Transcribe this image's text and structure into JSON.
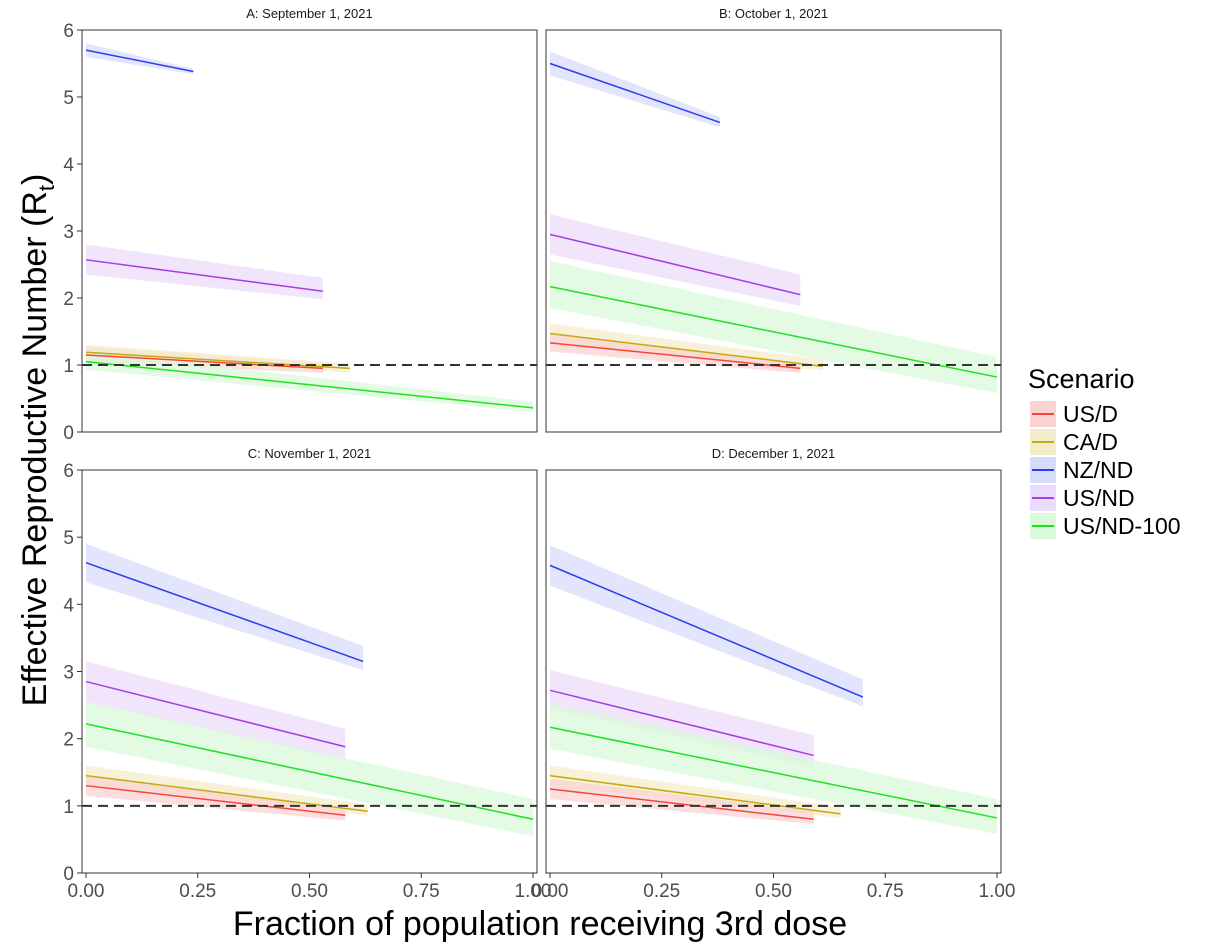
{
  "figure": {
    "ylabel_main": "Effective Reproductive Number (R",
    "ylabel_sub": "t",
    "ylabel_close": ")",
    "xlabel": "Fraction of population receiving 3rd dose"
  },
  "legend": {
    "title": "Scenario",
    "items": [
      {
        "label": "US/D",
        "color": "#f8453a",
        "fill": "#fbd3d3"
      },
      {
        "label": "CA/D",
        "color": "#c6a910",
        "fill": "#f3ecc9"
      },
      {
        "label": "NZ/ND",
        "color": "#2a3ef0",
        "fill": "#d8dcfb"
      },
      {
        "label": "US/ND",
        "color": "#a43ee5",
        "fill": "#ecdcfb"
      },
      {
        "label": "US/ND-100",
        "color": "#21e021",
        "fill": "#daf8da"
      }
    ]
  },
  "chart_data": {
    "type": "line",
    "xlim": [
      0,
      1
    ],
    "ylim": [
      0,
      6
    ],
    "x_ticks": [
      "0.00",
      "0.25",
      "0.50",
      "0.75",
      "1.00"
    ],
    "y_ticks": [
      "0",
      "1",
      "2",
      "3",
      "4",
      "5",
      "6"
    ],
    "reference_line": 1,
    "grid": false,
    "legend_position": "right",
    "panels": [
      {
        "title": "A: September 1, 2021",
        "series": [
          {
            "name": "NZ/ND",
            "x": [
              0,
              0.24
            ],
            "y": [
              5.7,
              5.38
            ],
            "lower": [
              5.6,
              5.34
            ],
            "upper": [
              5.8,
              5.42
            ]
          },
          {
            "name": "US/ND",
            "x": [
              0,
              0.53
            ],
            "y": [
              2.57,
              2.1
            ],
            "lower": [
              2.35,
              1.98
            ],
            "upper": [
              2.8,
              2.3
            ]
          },
          {
            "name": "US/D",
            "x": [
              0,
              0.53
            ],
            "y": [
              1.15,
              0.95
            ],
            "lower": [
              1.05,
              0.88
            ],
            "upper": [
              1.27,
              1.03
            ]
          },
          {
            "name": "CA/D",
            "x": [
              0,
              0.59
            ],
            "y": [
              1.19,
              0.95
            ],
            "lower": [
              1.1,
              0.89
            ],
            "upper": [
              1.3,
              1.02
            ]
          },
          {
            "name": "US/ND-100",
            "x": [
              0,
              1.0
            ],
            "y": [
              1.05,
              0.36
            ],
            "lower": [
              0.93,
              0.3
            ],
            "upper": [
              1.2,
              0.45
            ]
          }
        ]
      },
      {
        "title": "B: October 1, 2021",
        "series": [
          {
            "name": "NZ/ND",
            "x": [
              0,
              0.38
            ],
            "y": [
              5.5,
              4.62
            ],
            "lower": [
              5.32,
              4.55
            ],
            "upper": [
              5.68,
              4.7
            ]
          },
          {
            "name": "US/ND",
            "x": [
              0,
              0.56
            ],
            "y": [
              2.95,
              2.05
            ],
            "lower": [
              2.65,
              1.88
            ],
            "upper": [
              3.25,
              2.35
            ]
          },
          {
            "name": "US/ND-100",
            "x": [
              0,
              1.0
            ],
            "y": [
              2.17,
              0.82
            ],
            "lower": [
              1.85,
              0.58
            ],
            "upper": [
              2.55,
              1.12
            ]
          },
          {
            "name": "CA/D",
            "x": [
              0,
              0.61
            ],
            "y": [
              1.47,
              0.98
            ],
            "lower": [
              1.32,
              0.92
            ],
            "upper": [
              1.62,
              1.08
            ]
          },
          {
            "name": "US/D",
            "x": [
              0,
              0.56
            ],
            "y": [
              1.33,
              0.95
            ],
            "lower": [
              1.2,
              0.88
            ],
            "upper": [
              1.47,
              1.03
            ]
          }
        ]
      },
      {
        "title": "C: November 1, 2021",
        "series": [
          {
            "name": "NZ/ND",
            "x": [
              0,
              0.62
            ],
            "y": [
              4.62,
              3.15
            ],
            "lower": [
              4.33,
              3.02
            ],
            "upper": [
              4.9,
              3.38
            ]
          },
          {
            "name": "US/ND",
            "x": [
              0,
              0.58
            ],
            "y": [
              2.85,
              1.88
            ],
            "lower": [
              2.55,
              1.68
            ],
            "upper": [
              3.15,
              2.15
            ]
          },
          {
            "name": "US/ND-100",
            "x": [
              0,
              1.0
            ],
            "y": [
              2.22,
              0.8
            ],
            "lower": [
              1.88,
              0.55
            ],
            "upper": [
              2.55,
              1.1
            ]
          },
          {
            "name": "CA/D",
            "x": [
              0,
              0.63
            ],
            "y": [
              1.45,
              0.92
            ],
            "lower": [
              1.32,
              0.86
            ],
            "upper": [
              1.6,
              1.02
            ]
          },
          {
            "name": "US/D",
            "x": [
              0,
              0.58
            ],
            "y": [
              1.3,
              0.86
            ],
            "lower": [
              1.15,
              0.78
            ],
            "upper": [
              1.45,
              0.95
            ]
          }
        ]
      },
      {
        "title": "D: December 1, 2021",
        "series": [
          {
            "name": "NZ/ND",
            "x": [
              0,
              0.7
            ],
            "y": [
              4.58,
              2.62
            ],
            "lower": [
              4.28,
              2.48
            ],
            "upper": [
              4.88,
              2.88
            ]
          },
          {
            "name": "US/ND",
            "x": [
              0,
              0.59
            ],
            "y": [
              2.72,
              1.75
            ],
            "lower": [
              2.45,
              1.58
            ],
            "upper": [
              3.02,
              2.05
            ]
          },
          {
            "name": "US/ND-100",
            "x": [
              0,
              1.0
            ],
            "y": [
              2.17,
              0.82
            ],
            "lower": [
              1.85,
              0.58
            ],
            "upper": [
              2.52,
              1.1
            ]
          },
          {
            "name": "CA/D",
            "x": [
              0,
              0.65
            ],
            "y": [
              1.45,
              0.88
            ],
            "lower": [
              1.3,
              0.82
            ],
            "upper": [
              1.6,
              0.98
            ]
          },
          {
            "name": "US/D",
            "x": [
              0,
              0.59
            ],
            "y": [
              1.25,
              0.8
            ],
            "lower": [
              1.1,
              0.73
            ],
            "upper": [
              1.4,
              0.92
            ]
          }
        ]
      }
    ]
  }
}
